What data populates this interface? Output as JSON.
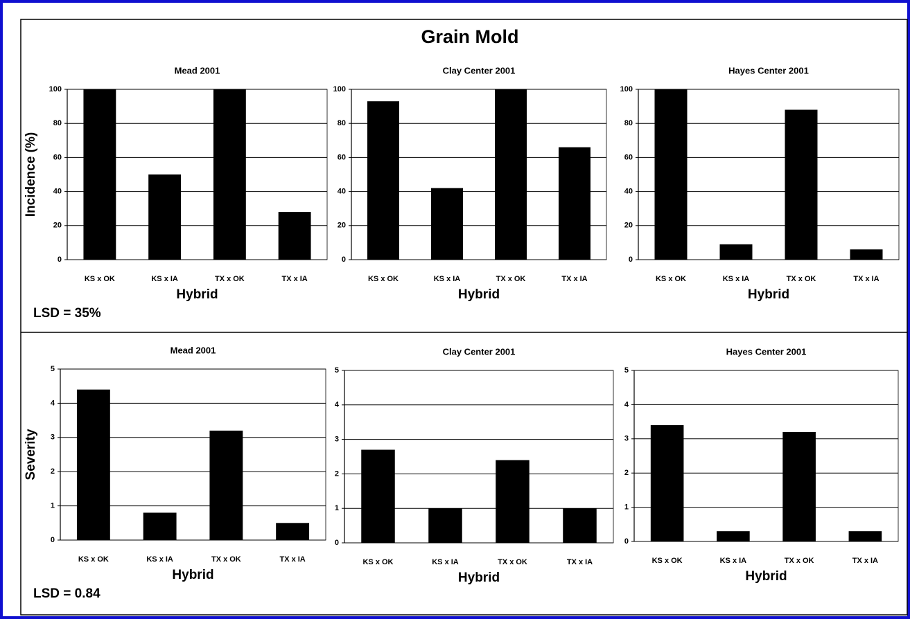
{
  "title": "Grain Mold",
  "chart_data": [
    {
      "type": "bar",
      "title": "Mead 2001",
      "ylabel": "Incidence (%)",
      "xlabel": "Hybrid",
      "annotation": "LSD = 35%",
      "categories": [
        "KS x OK",
        "KS x IA",
        "TX x OK",
        "TX x IA"
      ],
      "values": [
        100,
        50,
        100,
        28
      ],
      "color": "#000000",
      "ylim": [
        0,
        100
      ],
      "yticks": [
        0,
        20,
        40,
        60,
        80,
        100
      ],
      "grid": true
    },
    {
      "type": "bar",
      "title": "Clay Center 2001",
      "xlabel": "Hybrid",
      "categories": [
        "KS x OK",
        "KS x IA",
        "TX x OK",
        "TX x IA"
      ],
      "values": [
        93,
        42,
        100,
        66
      ],
      "color": "#000000",
      "ylim": [
        0,
        100
      ],
      "yticks": [
        0,
        20,
        40,
        60,
        80,
        100
      ],
      "grid": true
    },
    {
      "type": "bar",
      "title": "Hayes Center 2001",
      "xlabel": "Hybrid",
      "categories": [
        "KS x OK",
        "KS x IA",
        "TX x OK",
        "TX x IA"
      ],
      "values": [
        100,
        9,
        88,
        6
      ],
      "color": "#000000",
      "ylim": [
        0,
        100
      ],
      "yticks": [
        0,
        20,
        40,
        60,
        80,
        100
      ],
      "grid": true
    },
    {
      "type": "bar",
      "title": "Mead 2001",
      "ylabel": "Severity",
      "xlabel": "Hybrid",
      "annotation": "LSD = 0.84",
      "categories": [
        "KS x OK",
        "KS x IA",
        "TX x OK",
        "TX x IA"
      ],
      "values": [
        4.4,
        0.8,
        3.2,
        0.5
      ],
      "color": "#000000",
      "ylim": [
        0,
        5
      ],
      "yticks": [
        0,
        1,
        2,
        3,
        4,
        5
      ],
      "grid": true
    },
    {
      "type": "bar",
      "title": "Clay Center 2001",
      "xlabel": "Hybrid",
      "categories": [
        "KS x OK",
        "KS x IA",
        "TX x OK",
        "TX x IA"
      ],
      "values": [
        2.7,
        1.0,
        2.4,
        1.0
      ],
      "color": "#000000",
      "ylim": [
        0,
        5
      ],
      "yticks": [
        0,
        1,
        2,
        3,
        4,
        5
      ],
      "grid": true
    },
    {
      "type": "bar",
      "title": "Hayes Center 2001",
      "xlabel": "Hybrid",
      "categories": [
        "KS x OK",
        "KS x IA",
        "TX x OK",
        "TX x IA"
      ],
      "values": [
        3.4,
        0.3,
        3.2,
        0.3
      ],
      "color": "#000000",
      "ylim": [
        0,
        5
      ],
      "yticks": [
        0,
        1,
        2,
        3,
        4,
        5
      ],
      "grid": true
    }
  ]
}
